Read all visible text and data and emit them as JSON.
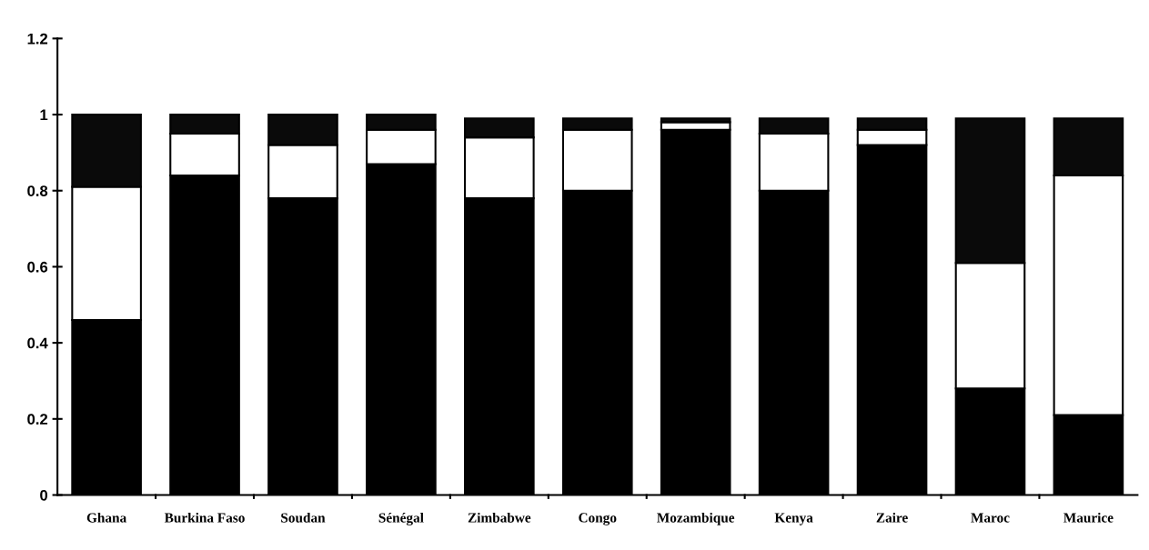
{
  "chart_data": {
    "type": "bar",
    "stacked": true,
    "categories": [
      "Ghana",
      "Burkina Faso",
      "Soudan",
      "Sénégal",
      "Zimbabwe",
      "Congo",
      "Mozambique",
      "Kenya",
      "Zaire",
      "Maroc",
      "Maurice"
    ],
    "series": [
      {
        "color": "#000000",
        "values": [
          0.46,
          0.84,
          0.78,
          0.87,
          0.78,
          0.8,
          0.96,
          0.8,
          0.92,
          0.28,
          0.21
        ]
      },
      {
        "color": "#ffffff",
        "values": [
          0.35,
          0.11,
          0.14,
          0.09,
          0.16,
          0.16,
          0.02,
          0.15,
          0.04,
          0.33,
          0.63
        ]
      },
      {
        "color": "#0a0a0a",
        "values": [
          0.19,
          0.05,
          0.08,
          0.04,
          0.05,
          0.03,
          0.01,
          0.04,
          0.03,
          0.38,
          0.15
        ]
      }
    ],
    "ylim": [
      0,
      1.2
    ],
    "yticks": [
      0,
      0.2,
      0.4,
      0.6,
      0.8,
      1,
      1.2
    ],
    "grid": false,
    "legend": false
  }
}
